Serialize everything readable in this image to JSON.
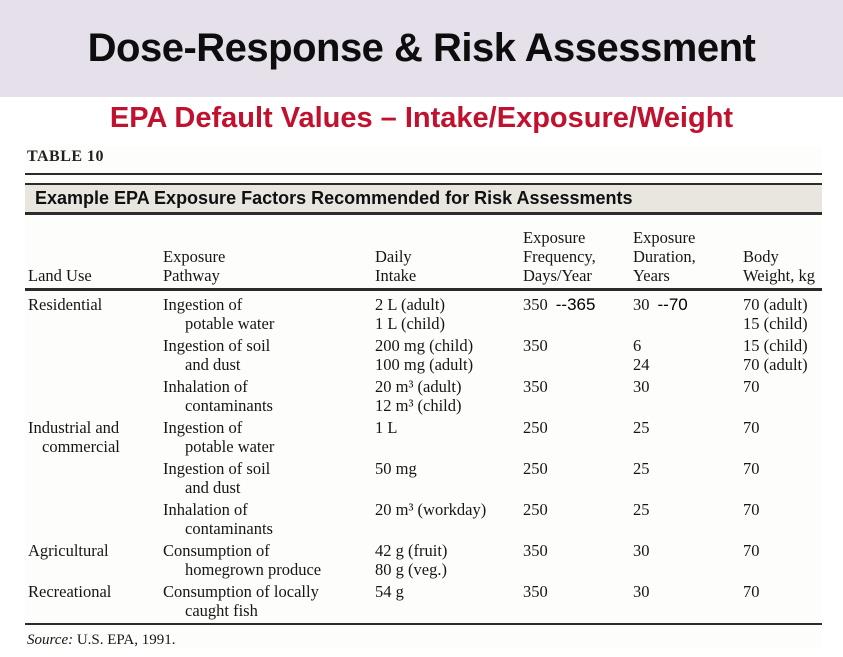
{
  "header": {
    "title": "Dose-Response & Risk Assessment",
    "subtitle": "EPA Default Values – Intake/Exposure/Weight"
  },
  "colors": {
    "banner_lavender": "#E5E0EA",
    "subtitle_red": "#C0122F",
    "title_bar_gray": "#E9E6E0"
  },
  "table": {
    "caption": "TABLE 10",
    "title": "Example EPA Exposure Factors Recommended for Risk Assessments",
    "columns": [
      {
        "id": "land_use",
        "header_lines": [
          "Land Use"
        ]
      },
      {
        "id": "pathway",
        "header_lines": [
          "Exposure",
          "Pathway"
        ]
      },
      {
        "id": "intake",
        "header_lines": [
          "Daily",
          "Intake"
        ]
      },
      {
        "id": "frequency",
        "header_lines": [
          "Exposure",
          "Frequency,",
          "Days/Year"
        ]
      },
      {
        "id": "duration",
        "header_lines": [
          "Exposure",
          "Duration,",
          "Years"
        ]
      },
      {
        "id": "weight",
        "header_lines": [
          "Body",
          "Weight, kg"
        ]
      }
    ],
    "rows": [
      {
        "land_use": [
          "Residential"
        ],
        "pathway": [
          "Ingestion of",
          "potable water"
        ],
        "intake": [
          "2 L (adult)",
          "1 L (child)"
        ],
        "frequency": [
          "350"
        ],
        "frequency_annotation": "--365",
        "duration": [
          "30"
        ],
        "duration_annotation": "--70",
        "weight": [
          "70 (adult)",
          "15 (child)"
        ]
      },
      {
        "land_use": [],
        "pathway": [
          "Ingestion of soil",
          "and dust"
        ],
        "intake": [
          "200 mg (child)",
          "100 mg (adult)"
        ],
        "frequency": [
          "350"
        ],
        "duration": [
          "6",
          "24"
        ],
        "weight": [
          "15 (child)",
          "70 (adult)"
        ]
      },
      {
        "land_use": [],
        "pathway": [
          "Inhalation of",
          "contaminants"
        ],
        "intake": [
          "20 m³ (adult)",
          "12 m³ (child)"
        ],
        "frequency": [
          "350"
        ],
        "duration": [
          "30"
        ],
        "weight": [
          "70"
        ]
      },
      {
        "land_use": [
          "Industrial and",
          "commercial"
        ],
        "pathway": [
          "Ingestion of",
          "potable water"
        ],
        "intake": [
          "1 L"
        ],
        "frequency": [
          "250"
        ],
        "duration": [
          "25"
        ],
        "weight": [
          "70"
        ]
      },
      {
        "land_use": [],
        "pathway": [
          "Ingestion of soil",
          "and dust"
        ],
        "intake": [
          "50 mg"
        ],
        "frequency": [
          "250"
        ],
        "duration": [
          "25"
        ],
        "weight": [
          "70"
        ]
      },
      {
        "land_use": [],
        "pathway": [
          "Inhalation of",
          "contaminants"
        ],
        "intake": [
          "20 m³ (workday)"
        ],
        "frequency": [
          "250"
        ],
        "duration": [
          "25"
        ],
        "weight": [
          "70"
        ]
      },
      {
        "land_use": [
          "Agricultural"
        ],
        "pathway": [
          "Consumption of",
          "homegrown produce"
        ],
        "intake": [
          "42 g (fruit)",
          "80 g (veg.)"
        ],
        "frequency": [
          "350"
        ],
        "duration": [
          "30"
        ],
        "weight": [
          "70"
        ]
      },
      {
        "land_use": [
          "Recreational"
        ],
        "pathway": [
          "Consumption of locally",
          "caught fish"
        ],
        "intake": [
          "54 g"
        ],
        "frequency": [
          "350"
        ],
        "duration": [
          "30"
        ],
        "weight": [
          "70"
        ]
      }
    ],
    "source_label": "Source:",
    "source_text": " U.S. EPA, 1991."
  }
}
